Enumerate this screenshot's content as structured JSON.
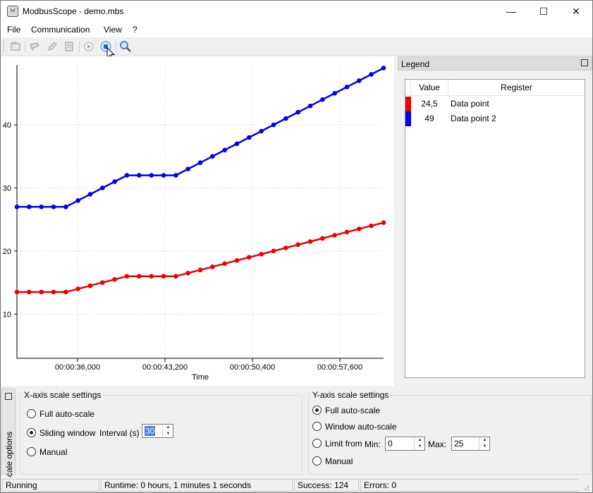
{
  "window": {
    "title": "ModbusScope - demo.mbs",
    "icon": "modbusscope-app-icon",
    "minimize": "—",
    "maximize": "☐",
    "close": "✕"
  },
  "menu": {
    "file": "File",
    "communication": "Communication",
    "view": "View",
    "help": "?"
  },
  "toolbar": {
    "buttons": [
      "open-project-icon",
      "import-data-icon",
      "edit-icon",
      "export-icon",
      "start-icon",
      "stop-icon",
      "zoom-icon"
    ]
  },
  "chart_data": {
    "type": "line",
    "xlabel": "Time",
    "ylabel": "",
    "x_ticks": [
      "00:00:36,000",
      "00:00:43,200",
      "00:00:50,400",
      "00:00:57,600"
    ],
    "y_ticks": [
      "10",
      "20",
      "30",
      "40"
    ],
    "ylim": [
      3,
      49.5
    ],
    "grid": true,
    "series": [
      {
        "name": "Data point",
        "color": "#ee0000",
        "values": [
          13.5,
          13.5,
          13.5,
          13.5,
          13.5,
          14,
          14.5,
          15,
          15.5,
          16,
          16,
          16,
          16,
          16,
          16.5,
          17,
          17.5,
          18,
          18.5,
          19,
          19.5,
          20,
          20.5,
          21,
          21.5,
          22,
          22.5,
          23,
          23.5,
          24,
          24.5
        ]
      },
      {
        "name": "Data point 2",
        "color": "#0000ee",
        "values": [
          27,
          27,
          27,
          27,
          27,
          28,
          29,
          30,
          31,
          32,
          32,
          32,
          32,
          32,
          33,
          34,
          35,
          36,
          37,
          38,
          39,
          40,
          41,
          42,
          43,
          44,
          45,
          46,
          47,
          48,
          49
        ]
      }
    ]
  },
  "legend": {
    "title": "Legend",
    "header_value": "Value",
    "header_register": "Register",
    "rows": [
      {
        "color": "#ee0000",
        "value": "24,5",
        "register": "Data point"
      },
      {
        "color": "#0000ee",
        "value": "49",
        "register": "Data point 2"
      }
    ]
  },
  "scale_options": {
    "tab_label": "Scale options",
    "xaxis": {
      "title": "X-axis scale settings",
      "full_auto": "Full auto-scale",
      "sliding": "Sliding window",
      "interval_label": "Interval (s)",
      "interval_value": "30",
      "manual": "Manual",
      "selected": "sliding"
    },
    "yaxis": {
      "title": "Y-axis scale settings",
      "full_auto": "Full auto-scale",
      "window_auto": "Window auto-scale",
      "limit_from": "Limit from",
      "min_label": "Min:",
      "min_value": "0",
      "max_label": "Max:",
      "max_value": "25",
      "manual": "Manual",
      "selected": "full_auto"
    }
  },
  "status": {
    "state": "Running",
    "runtime": "Runtime: 0 hours, 1 minutes 1 seconds",
    "success": "Success: 124",
    "errors": "Errors: 0"
  }
}
